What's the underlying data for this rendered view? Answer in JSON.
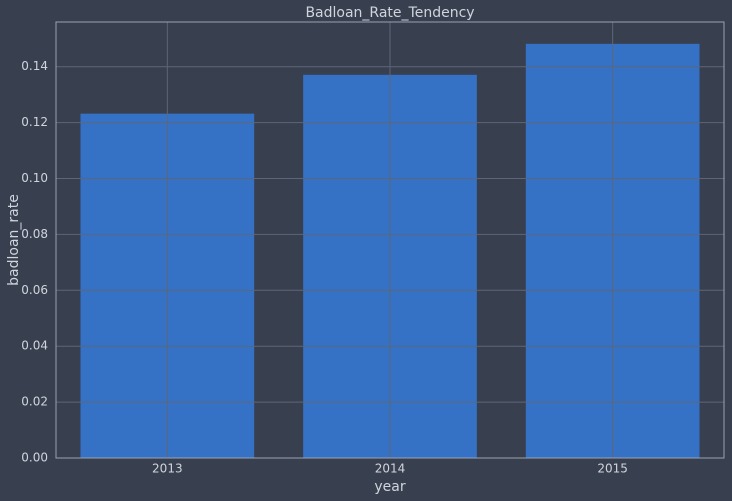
{
  "chart_data": {
    "type": "bar",
    "title": "Badloan_Rate_Tendency",
    "xlabel": "year",
    "ylabel": "badloan_rate",
    "categories": [
      "2013",
      "2014",
      "2015"
    ],
    "values": [
      0.1232,
      0.1371,
      0.1482
    ],
    "color": "#3572c6",
    "ylim": [
      0,
      0.156
    ],
    "yticks": [
      {
        "value": 0,
        "label": "0.00"
      },
      0.02,
      0.04,
      0.06,
      0.08,
      {
        "value": 0.1,
        "label": "0.10"
      },
      0.12,
      0.14
    ],
    "grid": true
  }
}
